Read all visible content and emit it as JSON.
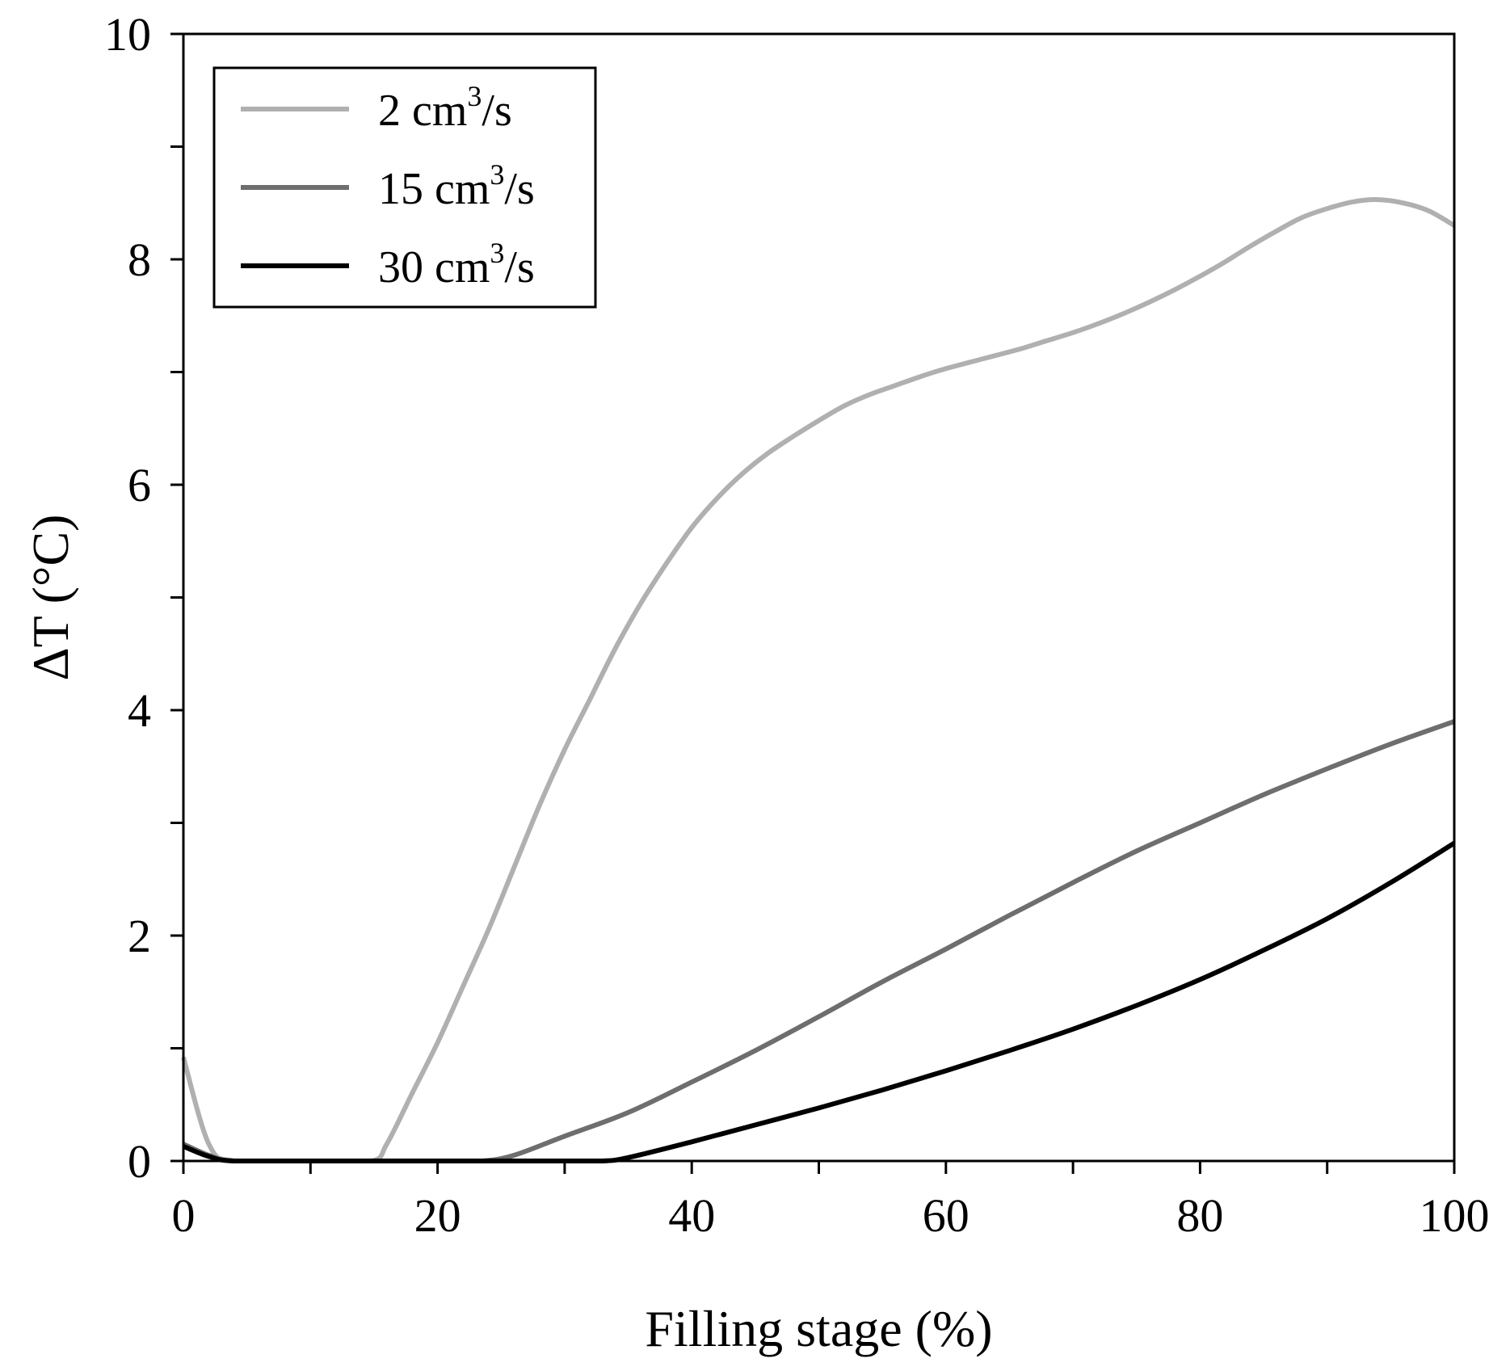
{
  "chart_data": {
    "type": "line",
    "title": "",
    "xlabel": "Filling stage (%)",
    "ylabel": "ΔT (°C)",
    "xlim": [
      0,
      100
    ],
    "ylim": [
      0,
      10
    ],
    "x_ticks": [
      0,
      20,
      40,
      60,
      80,
      100
    ],
    "x_tick_labels": [
      "0",
      "20",
      "40",
      "60",
      "80",
      "100"
    ],
    "x_minor_ticks": [
      10,
      30,
      50,
      70,
      90
    ],
    "y_ticks": [
      0,
      2,
      4,
      6,
      8,
      10
    ],
    "y_tick_labels": [
      "0",
      "2",
      "4",
      "6",
      "8",
      "10"
    ],
    "y_minor_ticks": [
      1,
      3,
      5,
      7,
      9
    ],
    "grid": false,
    "legend_position": "top-left",
    "series": [
      {
        "name": "2 cm",
        "name_sup": "3",
        "name_suffix": "/s",
        "color": "#b0b0b0",
        "x": [
          0,
          2,
          4,
          10,
          14.8,
          16,
          18,
          20,
          22,
          24,
          26,
          28,
          30,
          32,
          34,
          36,
          38,
          40,
          42,
          44,
          46,
          48,
          50,
          52,
          54,
          56,
          58,
          60,
          62,
          64,
          66,
          68,
          70,
          72,
          74,
          76,
          78,
          80,
          82,
          84,
          86,
          88,
          90,
          92,
          94,
          96,
          98,
          100
        ],
        "y": [
          0.92,
          0.15,
          0.0,
          0.0,
          0.0,
          0.15,
          0.6,
          1.05,
          1.55,
          2.05,
          2.6,
          3.15,
          3.65,
          4.1,
          4.55,
          4.95,
          5.3,
          5.62,
          5.88,
          6.1,
          6.28,
          6.43,
          6.57,
          6.7,
          6.8,
          6.88,
          6.96,
          7.03,
          7.09,
          7.15,
          7.21,
          7.28,
          7.35,
          7.43,
          7.52,
          7.62,
          7.73,
          7.85,
          7.98,
          8.12,
          8.25,
          8.37,
          8.45,
          8.51,
          8.53,
          8.5,
          8.43,
          8.3
        ]
      },
      {
        "name": "15 cm",
        "name_sup": "3",
        "name_suffix": "/s",
        "color": "#6e6e6e",
        "x": [
          0,
          2,
          4,
          10,
          20,
          23.5,
          26,
          30,
          35,
          40,
          45,
          50,
          55,
          60,
          65,
          70,
          75,
          80,
          85,
          90,
          95,
          100
        ],
        "y": [
          0.15,
          0.05,
          0.0,
          0.0,
          0.0,
          0.0,
          0.05,
          0.22,
          0.43,
          0.7,
          0.98,
          1.28,
          1.59,
          1.88,
          2.18,
          2.47,
          2.75,
          3.0,
          3.25,
          3.48,
          3.7,
          3.9
        ]
      },
      {
        "name": "30 cm",
        "name_sup": "3",
        "name_suffix": "/s",
        "color": "#000000",
        "x": [
          0,
          2,
          4,
          10,
          20,
          30,
          33,
          35,
          40,
          45,
          50,
          55,
          60,
          65,
          70,
          75,
          80,
          85,
          90,
          95,
          100
        ],
        "y": [
          0.13,
          0.04,
          0.0,
          0.0,
          0.0,
          0.0,
          0.0,
          0.03,
          0.17,
          0.32,
          0.47,
          0.63,
          0.8,
          0.98,
          1.17,
          1.38,
          1.61,
          1.87,
          2.15,
          2.47,
          2.82
        ]
      }
    ]
  }
}
